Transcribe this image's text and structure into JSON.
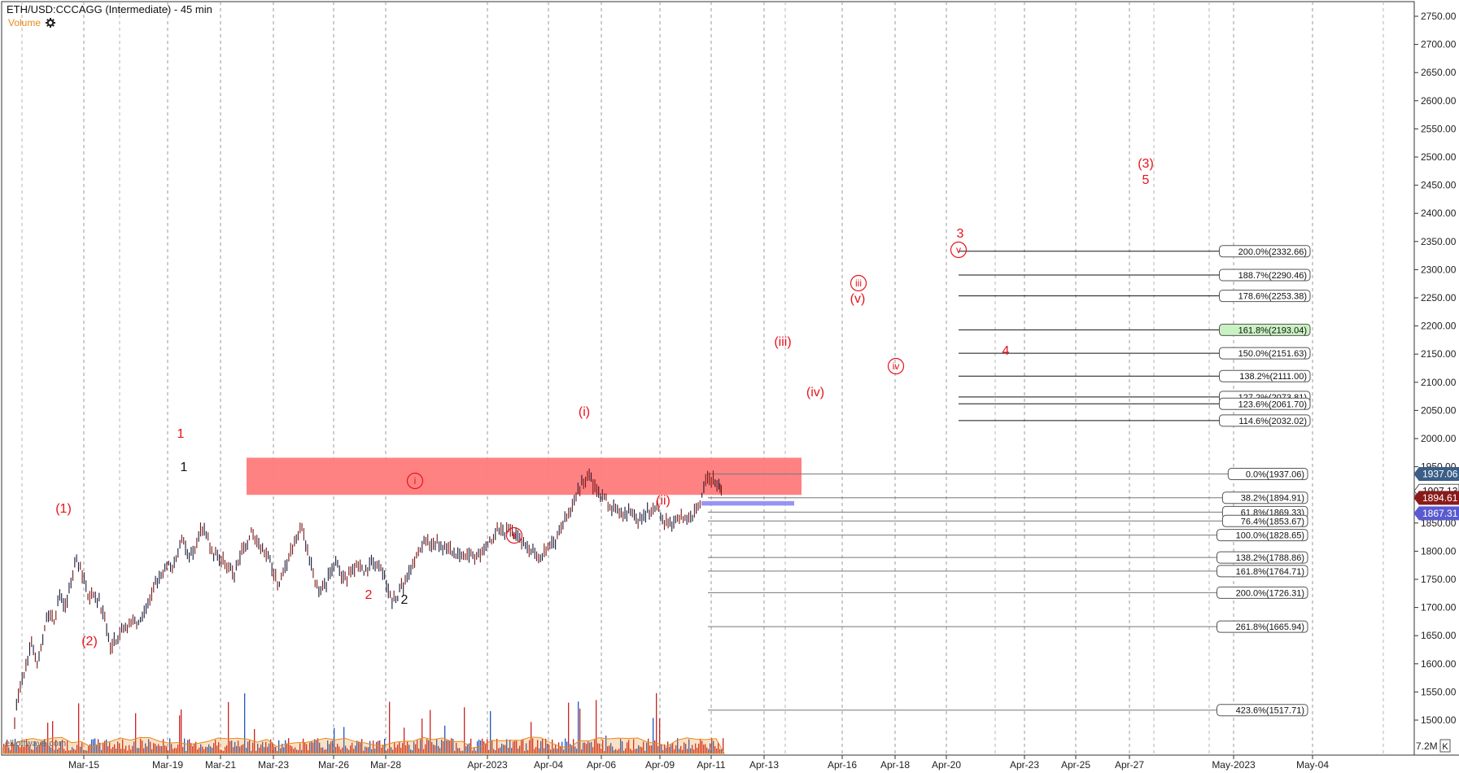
{
  "header": {
    "title": "ETH/USD:CCCAGG (Intermediate) - 45 min"
  },
  "volume_label": "Volume",
  "watermark": "elliottwave.com",
  "colors": {
    "wave_red": "#e8121b",
    "resistance_zone": "#ff7b7b",
    "support_zone": "#8f8ff2",
    "candle": "#1a1a3a",
    "vol_red": "#cc2222",
    "vol_blue": "#2255bb",
    "vol_ma": "#e8891b"
  },
  "chart_data": {
    "type": "candlestick",
    "title": "ETH/USD:CCCAGG (Intermediate) - 45 min",
    "y_axis": {
      "ticks": [
        1500,
        1550,
        1600,
        1650,
        1700,
        1750,
        1800,
        1850,
        1900,
        1950,
        2000,
        2050,
        2100,
        2150,
        2200,
        2250,
        2300,
        2350,
        2400,
        2450,
        2500,
        2550,
        2600,
        2650,
        2700,
        2750
      ],
      "tick_labels": [
        "1500.00",
        "1550.00",
        "1600.00",
        "1650.00",
        "1700.00",
        "1750.00",
        "1800.00",
        "1850.00",
        "1900.00",
        "1950.00",
        "2000.00",
        "2050.00",
        "2100.00",
        "2150.00",
        "2200.00",
        "2250.00",
        "2300.00",
        "2350.00",
        "2400.00",
        "2450.00",
        "2500.00",
        "2550.00",
        "2600.00",
        "2650.00",
        "2700.00",
        "2750.00"
      ],
      "range": [
        1483,
        2770
      ]
    },
    "x_axis": {
      "tick_labels": [
        "Mar-15",
        "Mar-19",
        "Mar-21",
        "Mar-23",
        "Mar-26",
        "Mar-28",
        "Apr-2023",
        "Apr-04",
        "Apr-06",
        "Apr-09",
        "Apr-11",
        "Apr-13",
        "Apr-16",
        "Apr-18",
        "Apr-20",
        "Apr-23",
        "Apr-25",
        "Apr-27",
        "May-2023",
        "May-04"
      ]
    },
    "price_tags": [
      {
        "value": 1937.06,
        "label": "1937.06",
        "style": "blue"
      },
      {
        "value": 1907.13,
        "label": "1907.13",
        "style": "plain"
      },
      {
        "value": 1894.61,
        "label": "1894.61",
        "style": "red"
      },
      {
        "value": 1867.31,
        "label": "1867.31",
        "style": "purple"
      }
    ],
    "volume_axis_label": "7.2M",
    "volume_axis_unit": "K",
    "price_path": [
      [
        0,
        1500
      ],
      [
        3,
        1560
      ],
      [
        6,
        1600
      ],
      [
        9,
        1640
      ],
      [
        12,
        1590
      ],
      [
        15,
        1650
      ],
      [
        18,
        1690
      ],
      [
        21,
        1680
      ],
      [
        24,
        1720
      ],
      [
        27,
        1700
      ],
      [
        30,
        1740
      ],
      [
        33,
        1790
      ],
      [
        36,
        1760
      ],
      [
        39,
        1720
      ],
      [
        42,
        1730
      ],
      [
        45,
        1710
      ],
      [
        48,
        1680
      ],
      [
        51,
        1630
      ],
      [
        54,
        1640
      ],
      [
        57,
        1670
      ],
      [
        60,
        1660
      ],
      [
        63,
        1680
      ],
      [
        66,
        1670
      ],
      [
        69,
        1700
      ],
      [
        72,
        1710
      ],
      [
        75,
        1740
      ],
      [
        78,
        1760
      ],
      [
        81,
        1780
      ],
      [
        84,
        1770
      ],
      [
        87,
        1800
      ],
      [
        90,
        1820
      ],
      [
        93,
        1790
      ],
      [
        96,
        1810
      ],
      [
        99,
        1840
      ],
      [
        102,
        1830
      ],
      [
        105,
        1800
      ],
      [
        108,
        1790
      ],
      [
        111,
        1780
      ],
      [
        114,
        1770
      ],
      [
        117,
        1760
      ],
      [
        120,
        1790
      ],
      [
        123,
        1810
      ],
      [
        126,
        1830
      ],
      [
        129,
        1820
      ],
      [
        132,
        1810
      ],
      [
        135,
        1790
      ],
      [
        138,
        1760
      ],
      [
        141,
        1740
      ],
      [
        144,
        1770
      ],
      [
        147,
        1800
      ],
      [
        150,
        1830
      ],
      [
        153,
        1840
      ],
      [
        156,
        1800
      ],
      [
        159,
        1760
      ],
      [
        162,
        1730
      ],
      [
        165,
        1740
      ],
      [
        168,
        1760
      ],
      [
        171,
        1780
      ],
      [
        174,
        1760
      ],
      [
        177,
        1750
      ],
      [
        180,
        1770
      ],
      [
        183,
        1780
      ],
      [
        186,
        1760
      ],
      [
        189,
        1770
      ],
      [
        192,
        1780
      ],
      [
        195,
        1770
      ],
      [
        198,
        1740
      ],
      [
        201,
        1710
      ],
      [
        204,
        1720
      ],
      [
        207,
        1740
      ],
      [
        210,
        1760
      ],
      [
        213,
        1780
      ],
      [
        216,
        1800
      ],
      [
        219,
        1820
      ],
      [
        222,
        1810
      ],
      [
        225,
        1820
      ],
      [
        228,
        1800
      ],
      [
        231,
        1810
      ],
      [
        234,
        1790
      ],
      [
        237,
        1800
      ],
      [
        240,
        1790
      ],
      [
        243,
        1800
      ],
      [
        246,
        1790
      ],
      [
        249,
        1800
      ],
      [
        252,
        1810
      ],
      [
        255,
        1830
      ],
      [
        258,
        1840
      ],
      [
        261,
        1830
      ],
      [
        264,
        1840
      ],
      [
        267,
        1830
      ],
      [
        270,
        1820
      ],
      [
        273,
        1810
      ],
      [
        276,
        1800
      ],
      [
        279,
        1790
      ],
      [
        282,
        1800
      ],
      [
        285,
        1810
      ],
      [
        288,
        1820
      ],
      [
        291,
        1840
      ],
      [
        294,
        1860
      ],
      [
        297,
        1880
      ],
      [
        300,
        1910
      ],
      [
        303,
        1920
      ],
      [
        306,
        1930
      ],
      [
        309,
        1910
      ],
      [
        312,
        1900
      ],
      [
        315,
        1890
      ],
      [
        318,
        1880
      ],
      [
        321,
        1870
      ],
      [
        324,
        1860
      ],
      [
        327,
        1870
      ],
      [
        330,
        1860
      ],
      [
        333,
        1855
      ],
      [
        336,
        1865
      ],
      [
        339,
        1870
      ],
      [
        342,
        1880
      ],
      [
        345,
        1860
      ],
      [
        348,
        1850
      ],
      [
        351,
        1855
      ],
      [
        354,
        1860
      ],
      [
        357,
        1855
      ],
      [
        360,
        1860
      ],
      [
        363,
        1875
      ],
      [
        366,
        1900
      ],
      [
        369,
        1935
      ],
      [
        372,
        1925
      ],
      [
        375,
        1915
      ],
      [
        377,
        1905
      ]
    ],
    "series_x_domain": [
      0,
      377
    ],
    "resistance_zone": {
      "y_low": 1900,
      "y_high": 1966
    },
    "support_zone": {
      "y_low": 1881,
      "y_high": 1889
    },
    "fib_up": [
      {
        "pct": "200.0%",
        "value": 2332.66,
        "label": "200.0%(2332.66)"
      },
      {
        "pct": "188.7%",
        "value": 2290.46,
        "label": "188.7%(2290.46)"
      },
      {
        "pct": "178.6%",
        "value": 2253.38,
        "label": "178.6%(2253.38)"
      },
      {
        "pct": "161.8%",
        "value": 2193.04,
        "label": "161.8%(2193.04)",
        "highlight": true
      },
      {
        "pct": "150.0%",
        "value": 2151.63,
        "label": "150.0%(2151.63)"
      },
      {
        "pct": "138.2%",
        "value": 2111.0,
        "label": "138.2%(2111.00)"
      },
      {
        "pct": "127.2%",
        "value": 2073.81,
        "label": "127.2%(2073.81)"
      },
      {
        "pct": "123.6%",
        "value": 2061.7,
        "label": "123.6%(2061.70)"
      },
      {
        "pct": "114.6%",
        "value": 2032.02,
        "label": "114.6%(2032.02)"
      }
    ],
    "fib_down": [
      {
        "pct": "0.0%",
        "value": 1937.06,
        "label": "0.0%(1937.06)"
      },
      {
        "pct": "38.2%",
        "value": 1894.91,
        "label": "38.2%(1894.91)"
      },
      {
        "pct": "61.8%",
        "value": 1869.33,
        "label": "61.8%(1869.33)"
      },
      {
        "pct": "76.4%",
        "value": 1853.67,
        "label": "76.4%(1853.67)"
      },
      {
        "pct": "100.0%",
        "value": 1828.65,
        "label": "100.0%(1828.65)"
      },
      {
        "pct": "138.2%",
        "value": 1788.86,
        "label": "138.2%(1788.86)"
      },
      {
        "pct": "161.8%",
        "value": 1764.71,
        "label": "161.8%(1764.71)"
      },
      {
        "pct": "200.0%",
        "value": 1726.31,
        "label": "200.0%(1726.31)"
      },
      {
        "pct": "261.8%",
        "value": 1665.94,
        "label": "261.8%(1665.94)"
      },
      {
        "pct": "423.6%",
        "value": 1517.71,
        "label": "423.6%(1517.71)"
      }
    ],
    "wave_labels": [
      {
        "text": "(1)",
        "color": "red"
      },
      {
        "text": "(2)",
        "color": "red"
      },
      {
        "text": "1",
        "color": "red"
      },
      {
        "text": "1",
        "color": "black"
      },
      {
        "text": "2",
        "color": "red"
      },
      {
        "text": "2",
        "color": "black"
      },
      {
        "text": "i",
        "color": "red",
        "circled": true
      },
      {
        "text": "ii",
        "color": "red",
        "circled": true
      },
      {
        "text": "(i)",
        "color": "red"
      },
      {
        "text": "(ii)",
        "color": "red"
      },
      {
        "text": "(iii)",
        "color": "red"
      },
      {
        "text": "(iv)",
        "color": "red"
      },
      {
        "text": "iii",
        "color": "red",
        "circled": true
      },
      {
        "text": "(v)",
        "color": "red"
      },
      {
        "text": "iv",
        "color": "red",
        "circled": true
      },
      {
        "text": "3",
        "color": "red"
      },
      {
        "text": "v",
        "color": "red",
        "circled": true
      },
      {
        "text": "4",
        "color": "red"
      },
      {
        "text": "(3)",
        "color": "red"
      },
      {
        "text": "5",
        "color": "red"
      }
    ]
  }
}
